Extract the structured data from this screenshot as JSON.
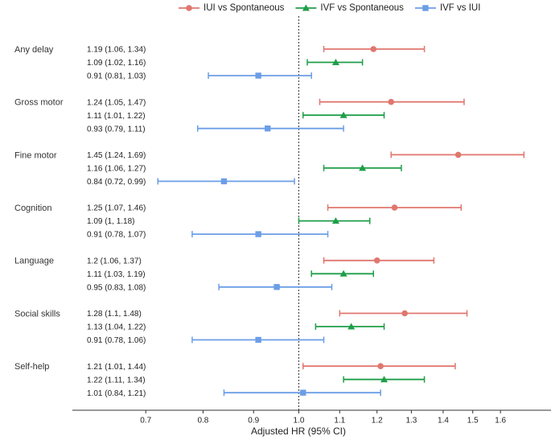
{
  "chart_data": {
    "type": "forest",
    "xlabel": "Adjusted HR (95% CI)",
    "xscale": "log",
    "xlim": [
      0.59,
      1.8
    ],
    "xticks": [
      0.7,
      0.8,
      0.9,
      {
        "value": 1,
        "label": "1.0"
      },
      1.1,
      1.2,
      1.3,
      1.4,
      1.5,
      1.6
    ],
    "reference": 1,
    "categories": [
      "Any delay",
      "Gross motor",
      "Fine motor",
      "Cognition",
      "Language",
      "Social skills",
      "Self-help"
    ],
    "series": [
      {
        "name": "IUI vs Spontaneous",
        "color": "#e0776f",
        "marker": "circle",
        "values": [
          1.19,
          1.24,
          1.45,
          1.25,
          1.2,
          1.28,
          1.21
        ],
        "lower": [
          1.06,
          1.05,
          1.24,
          1.07,
          1.06,
          1.1,
          1.01
        ],
        "upper": [
          1.34,
          1.47,
          1.69,
          1.46,
          1.37,
          1.48,
          1.44
        ],
        "value_labels": [
          "1.19 (1.06, 1.34)",
          "1.24 (1.05, 1.47)",
          "1.45 (1.24, 1.69)",
          "1.25 (1.07, 1.46)",
          "1.2 (1.06, 1.37)",
          "1.28 (1.1, 1.48)",
          "1.21 (1.01, 1.44)"
        ]
      },
      {
        "name": "IVF vs Spontaneous",
        "color": "#1f9e48",
        "marker": "triangle",
        "values": [
          1.09,
          1.11,
          1.16,
          1.09,
          1.11,
          1.13,
          1.22
        ],
        "lower": [
          1.02,
          1.01,
          1.06,
          1,
          1.03,
          1.04,
          1.11
        ],
        "upper": [
          1.16,
          1.22,
          1.27,
          1.18,
          1.19,
          1.22,
          1.34
        ],
        "value_labels": [
          "1.09 (1.02, 1.16)",
          "1.11 (1.01, 1.22)",
          "1.16 (1.06, 1.27)",
          "1.09 (1, 1.18)",
          "1.11 (1.03, 1.19)",
          "1.13 (1.04, 1.22)",
          "1.22 (1.11, 1.34)"
        ]
      },
      {
        "name": "IVF vs IUI",
        "color": "#6b9ee6",
        "marker": "square",
        "values": [
          0.91,
          0.93,
          0.84,
          0.91,
          0.95,
          0.91,
          1.01
        ],
        "lower": [
          0.81,
          0.79,
          0.72,
          0.78,
          0.83,
          0.78,
          0.84
        ],
        "upper": [
          1.03,
          1.11,
          0.99,
          1.07,
          1.08,
          1.06,
          1.21
        ],
        "value_labels": [
          "0.91 (0.81, 1.03)",
          "0.93 (0.79, 1.11)",
          "0.84 (0.72, 0.99)",
          "0.91 (0.78, 1.07)",
          "0.95 (0.83, 1.08)",
          "0.91 (0.78, 1.06)",
          "1.01 (0.84, 1.21)"
        ]
      }
    ]
  }
}
